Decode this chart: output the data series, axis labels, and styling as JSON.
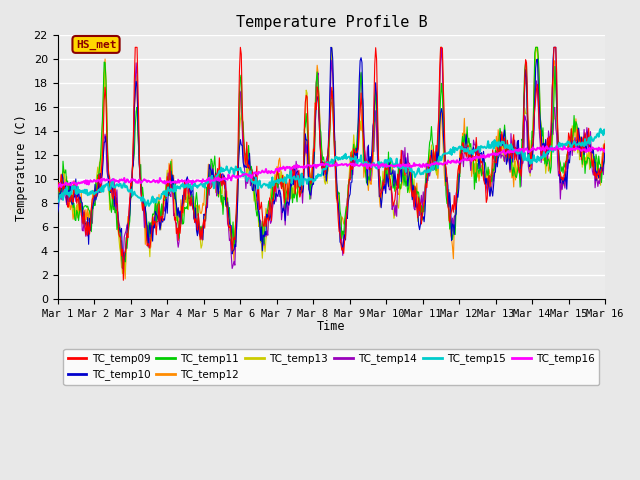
{
  "title": "Temperature Profile B",
  "xlabel": "Time",
  "ylabel": "Temperature (C)",
  "ylim": [
    0,
    22
  ],
  "annotation_text": "HS_met",
  "annotation_color": "#8B0000",
  "annotation_bg": "#FFD700",
  "fig_bg": "#E8E8E8",
  "plot_bg": "#EBEBEB",
  "grid_color": "#FFFFFF",
  "series_colors": {
    "TC_temp09": "#FF0000",
    "TC_temp10": "#0000CC",
    "TC_temp11": "#00CC00",
    "TC_temp12": "#FF8C00",
    "TC_temp13": "#CCCC00",
    "TC_temp14": "#9900BB",
    "TC_temp15": "#00CCCC",
    "TC_temp16": "#FF00FF"
  },
  "xtick_labels": [
    "Mar 1",
    "Mar 2",
    "Mar 3",
    "Mar 4",
    "Mar 5",
    "Mar 6",
    "Mar 7",
    "Mar 8",
    "Mar 9",
    "Mar 10",
    "Mar 11",
    "Mar 12",
    "Mar 13",
    "Mar 14",
    "Mar 15",
    "Mar 16"
  ],
  "ytick_labels": [
    0,
    2,
    4,
    6,
    8,
    10,
    12,
    14,
    16,
    18,
    20,
    22
  ],
  "n_points": 600,
  "days": 15
}
